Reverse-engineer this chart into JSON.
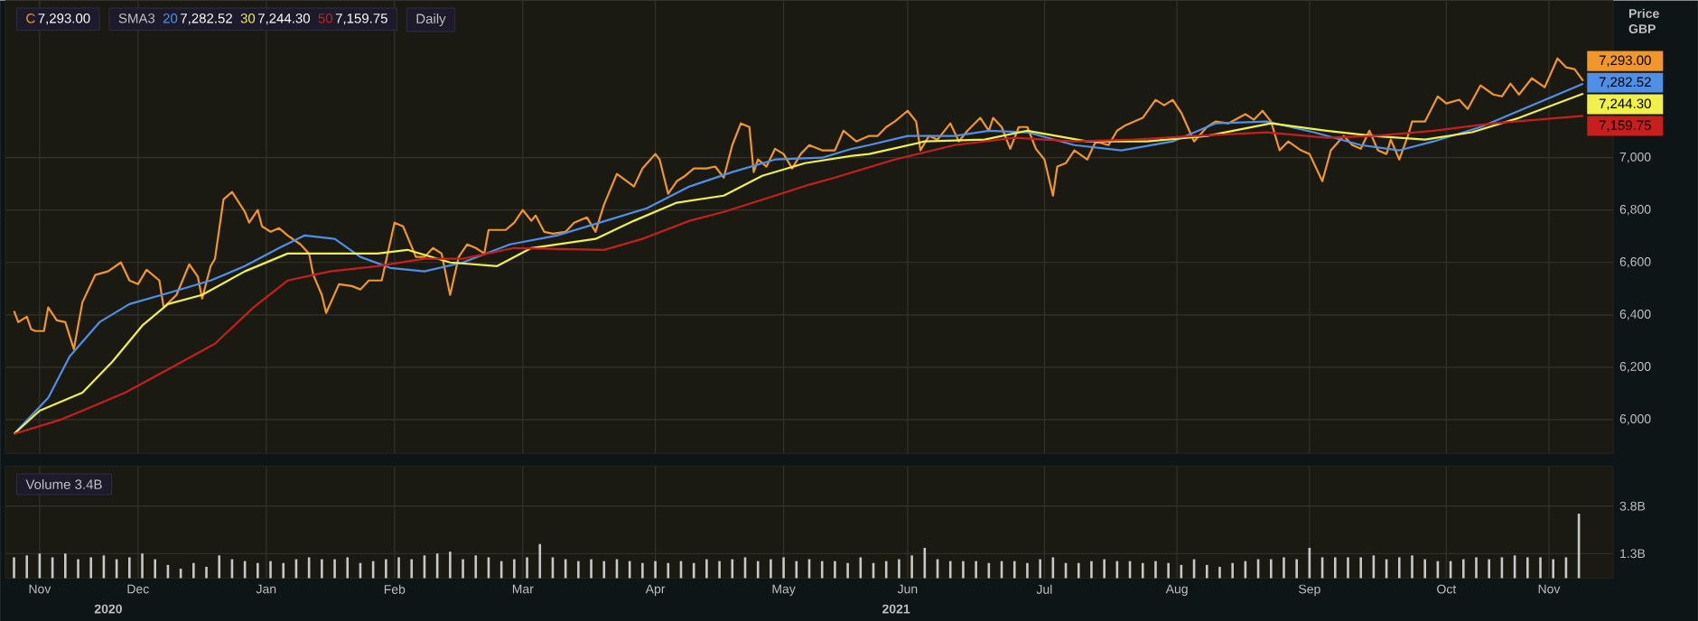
{
  "chart_data": [
    {
      "type": "line",
      "ylabel": "Price GBP",
      "legend": "top left",
      "grid": true,
      "marker": "none",
      "tick_labels": "y",
      "annotations": [
        "SMA3",
        "Daily"
      ],
      "xlim": [
        "2020-11-14",
        "2021-11-25"
      ],
      "xticks": [
        {
          "value": "2020-11-22",
          "label": null
        },
        {
          "value": "2020-12-15",
          "label": null
        },
        {
          "value": "2021-01-14",
          "label": null
        },
        {
          "value": "2021-02-13",
          "label": null
        },
        {
          "value": "2021-03-15",
          "label": null
        },
        {
          "value": "2021-04-15",
          "label": null
        },
        {
          "value": "2021-05-15",
          "label": null
        },
        {
          "value": "2021-06-13",
          "label": null
        },
        {
          "value": "2021-07-15",
          "label": null
        },
        {
          "value": "2021-08-15",
          "label": null
        },
        {
          "value": "2021-09-15",
          "label": null
        },
        {
          "value": "2021-10-17",
          "label": null
        },
        {
          "value": "2021-11-10",
          "label": null
        }
      ],
      "ylim": [
        5870,
        7600
      ],
      "yticks": [
        {
          "value": 6000,
          "label": "6,000"
        },
        {
          "value": 6200,
          "label": "6,200"
        },
        {
          "value": 6400,
          "label": "6,400"
        },
        {
          "value": 6600,
          "label": "6,600"
        },
        {
          "value": 6800,
          "label": "6,800"
        },
        {
          "value": 7000,
          "label": "7,000"
        }
      ],
      "series": [
        {
          "name": "C",
          "color": "#f0962a",
          "x": [
            "2020-11-16",
            "2020-11-17",
            "2020-11-19",
            "2020-11-20",
            "2020-11-21",
            "2020-11-23",
            "2020-11-24",
            "2020-11-26",
            "2020-11-28",
            "2020-11-30",
            "2020-12-02",
            "2020-12-05",
            "2020-12-08",
            "2020-12-11",
            "2020-12-13",
            "2020-12-15",
            "2020-12-17",
            "2020-12-20",
            "2020-12-21",
            "2020-12-24",
            "2020-12-27",
            "2020-12-29",
            "2020-12-30",
            "2021-01-01",
            "2021-01-02",
            "2021-01-04",
            "2021-01-06",
            "2021-01-09",
            "2021-01-10",
            "2021-01-12",
            "2021-01-13",
            "2021-01-15",
            "2021-01-17",
            "2021-01-19",
            "2021-01-22",
            "2021-01-24",
            "2021-01-25",
            "2021-01-27",
            "2021-01-28",
            "2021-01-31",
            "2021-02-03",
            "2021-02-05",
            "2021-02-07",
            "2021-02-10",
            "2021-02-13",
            "2021-02-15",
            "2021-02-18",
            "2021-02-20",
            "2021-02-22",
            "2021-02-24",
            "2021-02-26",
            "2021-02-28",
            "2021-03-02",
            "2021-03-04",
            "2021-03-06",
            "2021-03-07",
            "2021-03-11",
            "2021-03-13",
            "2021-03-15",
            "2021-03-17",
            "2021-03-18",
            "2021-03-20",
            "2021-03-22",
            "2021-03-25",
            "2021-03-27",
            "2021-03-30",
            "2021-04-01",
            "2021-04-03",
            "2021-04-06",
            "2021-04-10",
            "2021-04-12",
            "2021-04-15",
            "2021-04-16",
            "2021-04-18",
            "2021-04-20",
            "2021-04-22",
            "2021-04-24",
            "2021-04-27",
            "2021-04-29",
            "2021-05-01",
            "2021-05-03",
            "2021-05-05",
            "2021-05-07",
            "2021-05-08",
            "2021-05-09",
            "2021-05-11",
            "2021-05-13",
            "2021-05-15",
            "2021-05-17",
            "2021-05-19",
            "2021-05-21",
            "2021-05-24",
            "2021-05-27",
            "2021-05-29",
            "2021-06-01",
            "2021-06-04",
            "2021-06-06",
            "2021-06-08",
            "2021-06-10",
            "2021-06-13",
            "2021-06-15",
            "2021-06-16",
            "2021-06-18",
            "2021-06-20",
            "2021-06-23",
            "2021-06-25",
            "2021-06-27",
            "2021-06-30",
            "2021-07-02",
            "2021-07-03",
            "2021-07-05",
            "2021-07-07",
            "2021-07-09",
            "2021-07-11",
            "2021-07-13",
            "2021-07-15",
            "2021-07-17",
            "2021-07-18",
            "2021-07-20",
            "2021-07-22",
            "2021-07-25",
            "2021-07-27",
            "2021-07-30",
            "2021-08-01",
            "2021-08-03",
            "2021-08-07",
            "2021-08-10",
            "2021-08-12",
            "2021-08-14",
            "2021-08-16",
            "2021-08-19",
            "2021-08-22",
            "2021-08-24",
            "2021-08-27",
            "2021-08-31",
            "2021-09-02",
            "2021-09-04",
            "2021-09-06",
            "2021-09-08",
            "2021-09-10",
            "2021-09-13",
            "2021-09-15",
            "2021-09-18",
            "2021-09-20",
            "2021-09-23",
            "2021-09-25",
            "2021-09-27",
            "2021-09-29",
            "2021-10-01",
            "2021-10-03",
            "2021-10-04",
            "2021-10-06",
            "2021-10-08",
            "2021-10-09",
            "2021-10-12",
            "2021-10-15",
            "2021-10-17",
            "2021-10-20",
            "2021-10-22",
            "2021-10-25",
            "2021-10-28",
            "2021-10-30",
            "2021-11-01",
            "2021-11-03",
            "2021-11-06",
            "2021-11-09",
            "2021-11-12",
            "2021-11-14",
            "2021-11-16",
            "2021-11-18"
          ],
          "values": [
            6414,
            6372,
            6393,
            6345,
            6338,
            6338,
            6428,
            6379,
            6372,
            6269,
            6448,
            6552,
            6566,
            6600,
            6531,
            6517,
            6572,
            6531,
            6428,
            6476,
            6593,
            6545,
            6462,
            6586,
            6614,
            6841,
            6869,
            6793,
            6752,
            6800,
            6738,
            6717,
            6731,
            6703,
            6669,
            6634,
            6552,
            6476,
            6407,
            6517,
            6510,
            6497,
            6531,
            6531,
            6752,
            6738,
            6621,
            6621,
            6655,
            6634,
            6476,
            6621,
            6669,
            6655,
            6634,
            6724,
            6724,
            6752,
            6800,
            6759,
            6779,
            6717,
            6710,
            6717,
            6752,
            6772,
            6717,
            6821,
            6938,
            6890,
            6959,
            7014,
            6993,
            6862,
            6910,
            6931,
            6959,
            6959,
            6966,
            6924,
            7048,
            7131,
            7117,
            6945,
            6993,
            6966,
            7034,
            7014,
            6959,
            7014,
            7048,
            7028,
            7028,
            7103,
            7062,
            7083,
            7083,
            7117,
            7138,
            7179,
            7138,
            7028,
            7083,
            7069,
            7131,
            7062,
            7103,
            7152,
            7103,
            7152,
            7117,
            7034,
            7117,
            7117,
            7034,
            6993,
            6855,
            6966,
            6979,
            7028,
            6993,
            7062,
            7048,
            7103,
            7124,
            7152,
            7221,
            7200,
            7221,
            7172,
            7062,
            7117,
            7138,
            7131,
            7166,
            7145,
            7179,
            7138,
            7028,
            7062,
            7028,
            7014,
            6910,
            7028,
            7083,
            7048,
            7034,
            7103,
            7028,
            7014,
            7069,
            6993,
            7083,
            7138,
            7138,
            7234,
            7207,
            7221,
            7186,
            7276,
            7241,
            7234,
            7283,
            7241,
            7303,
            7269,
            7379,
            7345,
            7338,
            7293.0
          ],
          "value_labels": [
            null,
            null,
            null,
            null,
            null,
            null,
            null,
            null,
            null,
            null,
            null,
            null,
            null,
            null,
            null,
            null,
            null,
            null,
            null,
            null,
            null,
            null,
            null,
            null,
            null,
            null,
            null,
            null,
            null,
            null,
            null,
            null,
            null,
            null,
            null,
            null,
            null,
            null,
            null,
            null,
            null,
            null,
            null,
            null,
            null,
            null,
            null,
            null,
            null,
            null,
            null,
            null,
            null,
            null,
            null,
            null,
            null,
            null,
            null,
            null,
            null,
            null,
            null,
            null,
            null,
            null,
            null,
            null,
            null,
            null,
            null,
            null,
            null,
            null,
            null,
            null,
            null,
            null,
            null,
            null,
            null,
            null,
            null,
            null,
            null,
            null,
            null,
            null,
            null,
            null,
            null,
            null,
            null,
            null,
            null,
            null,
            null,
            null,
            null,
            null,
            null,
            null,
            null,
            null,
            null,
            null,
            null,
            null,
            null,
            null,
            null,
            null,
            null,
            null,
            null,
            null,
            null,
            null,
            null,
            null,
            null,
            null,
            null,
            null,
            null,
            null,
            null,
            null,
            null,
            null,
            null,
            null,
            null,
            null,
            null,
            null,
            null,
            null,
            null,
            null,
            null,
            null,
            null,
            null,
            null,
            null,
            null,
            null,
            null,
            null,
            null,
            null,
            null,
            null,
            null,
            null,
            null,
            null,
            null,
            null,
            null,
            null,
            null,
            null,
            null,
            null,
            null,
            null,
            null,
            "7,293.00"
          ]
        },
        {
          "name": "20",
          "color": "#4f8fe8",
          "x": [
            "2020-11-16",
            "2020-11-24",
            "2020-11-29",
            "2020-12-06",
            "2020-12-13",
            "2020-12-22",
            "2021-01-01",
            "2021-01-09",
            "2021-01-17",
            "2021-01-23",
            "2021-01-30",
            "2021-02-05",
            "2021-02-12",
            "2021-02-20",
            "2021-03-01",
            "2021-03-12",
            "2021-03-23",
            "2021-04-02",
            "2021-04-13",
            "2021-04-23",
            "2021-05-03",
            "2021-05-13",
            "2021-05-24",
            "2021-05-31",
            "2021-06-04",
            "2021-06-13",
            "2021-06-24",
            "2021-07-02",
            "2021-07-11",
            "2021-07-22",
            "2021-08-02",
            "2021-08-14",
            "2021-08-24",
            "2021-09-05",
            "2021-09-16",
            "2021-09-27",
            "2021-10-06",
            "2021-10-14",
            "2021-10-25",
            "2021-11-06",
            "2021-11-18"
          ],
          "values": [
            5945,
            6083,
            6241,
            6372,
            6441,
            6483,
            6531,
            6586,
            6655,
            6703,
            6690,
            6621,
            6579,
            6566,
            6600,
            6669,
            6703,
            6752,
            6807,
            6890,
            6945,
            6993,
            7000,
            7034,
            7048,
            7083,
            7083,
            7103,
            7097,
            7048,
            7028,
            7062,
            7131,
            7138,
            7097,
            7048,
            7028,
            7062,
            7117,
            7200,
            7282.52
          ],
          "value_labels": [
            null,
            null,
            null,
            null,
            null,
            null,
            null,
            null,
            null,
            null,
            null,
            null,
            null,
            null,
            null,
            null,
            null,
            null,
            null,
            null,
            null,
            null,
            null,
            null,
            null,
            null,
            null,
            null,
            null,
            null,
            null,
            null,
            null,
            null,
            null,
            null,
            null,
            null,
            null,
            null,
            "7,282.52"
          ]
        },
        {
          "name": "30",
          "color": "#f0f04a",
          "x": [
            "2020-11-16",
            "2020-11-22",
            "2020-12-02",
            "2020-12-09",
            "2020-12-16",
            "2020-12-22",
            "2020-12-30",
            "2021-01-09",
            "2021-01-19",
            "2021-01-29",
            "2021-02-09",
            "2021-02-16",
            "2021-02-26",
            "2021-03-09",
            "2021-03-17",
            "2021-04-01",
            "2021-04-10",
            "2021-04-20",
            "2021-05-01",
            "2021-05-10",
            "2021-05-20",
            "2021-05-31",
            "2021-06-04",
            "2021-06-17",
            "2021-07-01",
            "2021-07-11",
            "2021-07-25",
            "2021-08-08",
            "2021-08-22",
            "2021-09-06",
            "2021-09-19",
            "2021-09-30",
            "2021-10-12",
            "2021-10-23",
            "2021-11-03",
            "2021-11-18"
          ],
          "values": [
            5945,
            6034,
            6103,
            6221,
            6359,
            6441,
            6476,
            6566,
            6634,
            6634,
            6634,
            6648,
            6600,
            6586,
            6655,
            6690,
            6759,
            6828,
            6855,
            6931,
            6979,
            7007,
            7014,
            7062,
            7069,
            7103,
            7062,
            7062,
            7083,
            7131,
            7103,
            7083,
            7069,
            7097,
            7152,
            7244.3
          ],
          "value_labels": [
            null,
            null,
            null,
            null,
            null,
            null,
            null,
            null,
            null,
            null,
            null,
            null,
            null,
            null,
            null,
            null,
            null,
            null,
            null,
            null,
            null,
            null,
            null,
            null,
            null,
            null,
            null,
            null,
            null,
            null,
            null,
            null,
            null,
            null,
            null,
            "7,244.30"
          ]
        },
        {
          "name": "50",
          "color": "#c81e1e",
          "x": [
            "2020-11-16",
            "2020-11-27",
            "2020-12-02",
            "2020-12-12",
            "2020-12-23",
            "2021-01-02",
            "2021-01-11",
            "2021-01-19",
            "2021-01-29",
            "2021-02-09",
            "2021-02-20",
            "2021-03-01",
            "2021-03-13",
            "2021-04-03",
            "2021-04-12",
            "2021-04-23",
            "2021-05-01",
            "2021-05-13",
            "2021-05-21",
            "2021-05-27",
            "2021-06-10",
            "2021-06-24",
            "2021-07-08",
            "2021-07-22",
            "2021-08-05",
            "2021-08-19",
            "2021-09-05",
            "2021-09-19",
            "2021-09-30",
            "2021-10-14",
            "2021-10-28",
            "2021-11-18"
          ],
          "values": [
            5945,
            6000,
            6034,
            6103,
            6200,
            6290,
            6428,
            6531,
            6566,
            6586,
            6614,
            6614,
            6655,
            6648,
            6690,
            6759,
            6793,
            6855,
            6897,
            6924,
            6993,
            7048,
            7076,
            7062,
            7069,
            7083,
            7097,
            7076,
            7083,
            7103,
            7131,
            7159.75
          ],
          "value_labels": [
            null,
            null,
            null,
            null,
            null,
            null,
            null,
            null,
            null,
            null,
            null,
            null,
            null,
            null,
            null,
            null,
            null,
            null,
            null,
            null,
            null,
            null,
            null,
            null,
            null,
            null,
            null,
            null,
            null,
            null,
            null,
            "7,159.75"
          ]
        }
      ]
    },
    {
      "type": "bar",
      "title": "Volume 3.4B",
      "grid": true,
      "color": "#c8c8c8",
      "annotations": [
        "2020",
        "2021"
      ],
      "xlim": [
        "2020-11-14",
        "2021-11-25"
      ],
      "xticks": [
        {
          "value": "2020-11-22",
          "label": "Nov"
        },
        {
          "value": "2020-12-15",
          "label": "Dec"
        },
        {
          "value": "2021-01-14",
          "label": "Jan"
        },
        {
          "value": "2021-02-13",
          "label": "Feb"
        },
        {
          "value": "2021-03-15",
          "label": "Mar"
        },
        {
          "value": "2021-04-15",
          "label": "Apr"
        },
        {
          "value": "2021-05-15",
          "label": "May"
        },
        {
          "value": "2021-06-13",
          "label": "Jun"
        },
        {
          "value": "2021-07-15",
          "label": "Jul"
        },
        {
          "value": "2021-08-15",
          "label": "Aug"
        },
        {
          "value": "2021-09-15",
          "label": "Sep"
        },
        {
          "value": "2021-10-17",
          "label": "Oct"
        },
        {
          "value": "2021-11-10",
          "label": "Nov"
        }
      ],
      "ylim": [
        0,
        5.9
      ],
      "yticks": [
        {
          "value": 1.3,
          "label": "1.3B"
        },
        {
          "value": 3.8,
          "label": "3.8B"
        }
      ],
      "x": [
        "2020-11-16",
        "2020-11-19",
        "2020-11-22",
        "2020-11-25",
        "2020-11-28",
        "2020-12-01",
        "2020-12-04",
        "2020-12-07",
        "2020-12-10",
        "2020-12-13",
        "2020-12-16",
        "2020-12-19",
        "2020-12-22",
        "2020-12-25",
        "2020-12-28",
        "2020-12-31",
        "2021-01-03",
        "2021-01-06",
        "2021-01-09",
        "2021-01-12",
        "2021-01-15",
        "2021-01-18",
        "2021-01-21",
        "2021-01-24",
        "2021-01-27",
        "2021-01-30",
        "2021-02-02",
        "2021-02-05",
        "2021-02-08",
        "2021-02-11",
        "2021-02-14",
        "2021-02-17",
        "2021-02-20",
        "2021-02-23",
        "2021-02-26",
        "2021-03-01",
        "2021-03-04",
        "2021-03-07",
        "2021-03-10",
        "2021-03-13",
        "2021-03-16",
        "2021-03-19",
        "2021-03-22",
        "2021-03-25",
        "2021-03-28",
        "2021-03-31",
        "2021-04-03",
        "2021-04-06",
        "2021-04-09",
        "2021-04-12",
        "2021-04-15",
        "2021-04-18",
        "2021-04-21",
        "2021-04-24",
        "2021-04-27",
        "2021-04-30",
        "2021-05-03",
        "2021-05-06",
        "2021-05-09",
        "2021-05-12",
        "2021-05-15",
        "2021-05-18",
        "2021-05-21",
        "2021-05-24",
        "2021-05-27",
        "2021-05-30",
        "2021-06-02",
        "2021-06-05",
        "2021-06-08",
        "2021-06-11",
        "2021-06-14",
        "2021-06-17",
        "2021-06-20",
        "2021-06-23",
        "2021-06-26",
        "2021-06-29",
        "2021-07-02",
        "2021-07-05",
        "2021-07-08",
        "2021-07-11",
        "2021-07-14",
        "2021-07-17",
        "2021-07-20",
        "2021-07-23",
        "2021-07-26",
        "2021-07-29",
        "2021-08-01",
        "2021-08-04",
        "2021-08-07",
        "2021-08-10",
        "2021-08-13",
        "2021-08-16",
        "2021-08-19",
        "2021-08-22",
        "2021-08-25",
        "2021-08-28",
        "2021-08-31",
        "2021-09-03",
        "2021-09-06",
        "2021-09-09",
        "2021-09-12",
        "2021-09-15",
        "2021-09-18",
        "2021-09-21",
        "2021-09-24",
        "2021-09-27",
        "2021-09-30",
        "2021-10-03",
        "2021-10-06",
        "2021-10-09",
        "2021-10-12",
        "2021-10-15",
        "2021-10-18",
        "2021-10-21",
        "2021-10-24",
        "2021-10-27",
        "2021-10-30",
        "2021-11-02",
        "2021-11-05",
        "2021-11-08",
        "2021-11-11",
        "2021-11-14",
        "2021-11-17"
      ],
      "values": [
        1.1,
        1.2,
        1.3,
        1.1,
        1.3,
        1.0,
        1.1,
        1.2,
        1.0,
        1.1,
        1.3,
        1.0,
        0.7,
        0.5,
        0.8,
        0.6,
        1.2,
        1.0,
        0.9,
        0.8,
        0.9,
        0.8,
        1.0,
        1.1,
        1.0,
        1.0,
        1.1,
        0.8,
        0.9,
        1.0,
        1.1,
        1.0,
        1.2,
        1.3,
        1.4,
        1.0,
        1.2,
        1.1,
        0.9,
        1.0,
        1.1,
        1.8,
        1.1,
        1.0,
        0.9,
        1.0,
        0.9,
        1.0,
        0.9,
        0.8,
        0.9,
        0.8,
        0.9,
        0.8,
        1.0,
        0.9,
        1.0,
        1.1,
        0.9,
        1.0,
        1.1,
        0.9,
        1.0,
        0.9,
        0.9,
        0.8,
        1.1,
        0.8,
        0.9,
        1.0,
        1.2,
        1.6,
        1.0,
        0.9,
        0.9,
        0.9,
        0.8,
        0.9,
        0.9,
        0.8,
        1.0,
        1.1,
        0.8,
        0.8,
        0.9,
        1.0,
        0.9,
        0.9,
        0.8,
        0.9,
        0.8,
        0.7,
        1.0,
        0.7,
        0.6,
        0.8,
        0.9,
        1.0,
        1.0,
        1.1,
        1.0,
        1.6,
        1.1,
        1.1,
        1.1,
        1.1,
        1.2,
        1.0,
        1.1,
        1.2,
        1.0,
        0.9,
        0.9,
        1.0,
        1.1,
        1.0,
        1.1,
        1.2,
        1.1,
        1.1,
        1.0,
        1.1,
        3.4
      ]
    }
  ]
}
